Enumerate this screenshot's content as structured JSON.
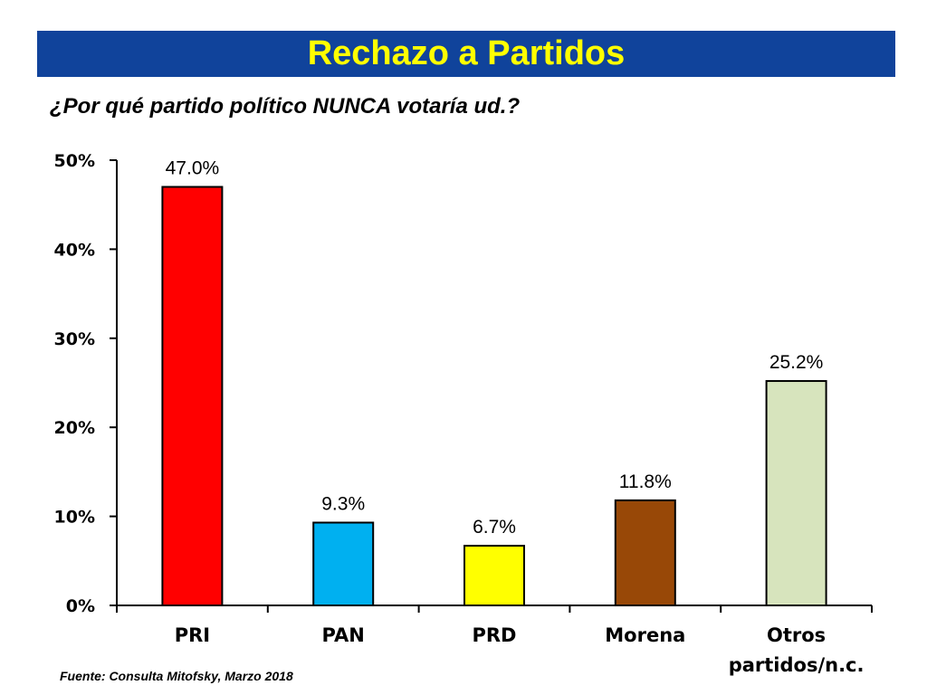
{
  "header": {
    "title": "Rechazo a Partidos",
    "subtitle": "¿Por qué partido político NUNCA votaría ud.?",
    "title_color": "#ffff00",
    "banner_color": "#10439b"
  },
  "footer": {
    "source": "Fuente: Consulta Mitofsky, Marzo 2018"
  },
  "chart_data": {
    "type": "bar",
    "title": "",
    "xlabel": "",
    "ylabel": "",
    "categories": [
      [
        "PRI"
      ],
      [
        "PAN"
      ],
      [
        "PRD"
      ],
      [
        "Morena"
      ],
      [
        "Otros",
        "partidos/n.c."
      ]
    ],
    "values": [
      47.0,
      9.3,
      6.7,
      11.8,
      25.2
    ],
    "value_labels": [
      "47.0%",
      "9.3%",
      "6.7%",
      "11.8%",
      "25.2%"
    ],
    "colors": [
      "#ff0000",
      "#00b0f0",
      "#ffff00",
      "#984807",
      "#d7e4bd"
    ],
    "ylim": [
      0,
      50
    ],
    "yticks": [
      "0%",
      "10%",
      "20%",
      "30%",
      "40%",
      "50%"
    ],
    "grid": false,
    "legend": "none"
  }
}
